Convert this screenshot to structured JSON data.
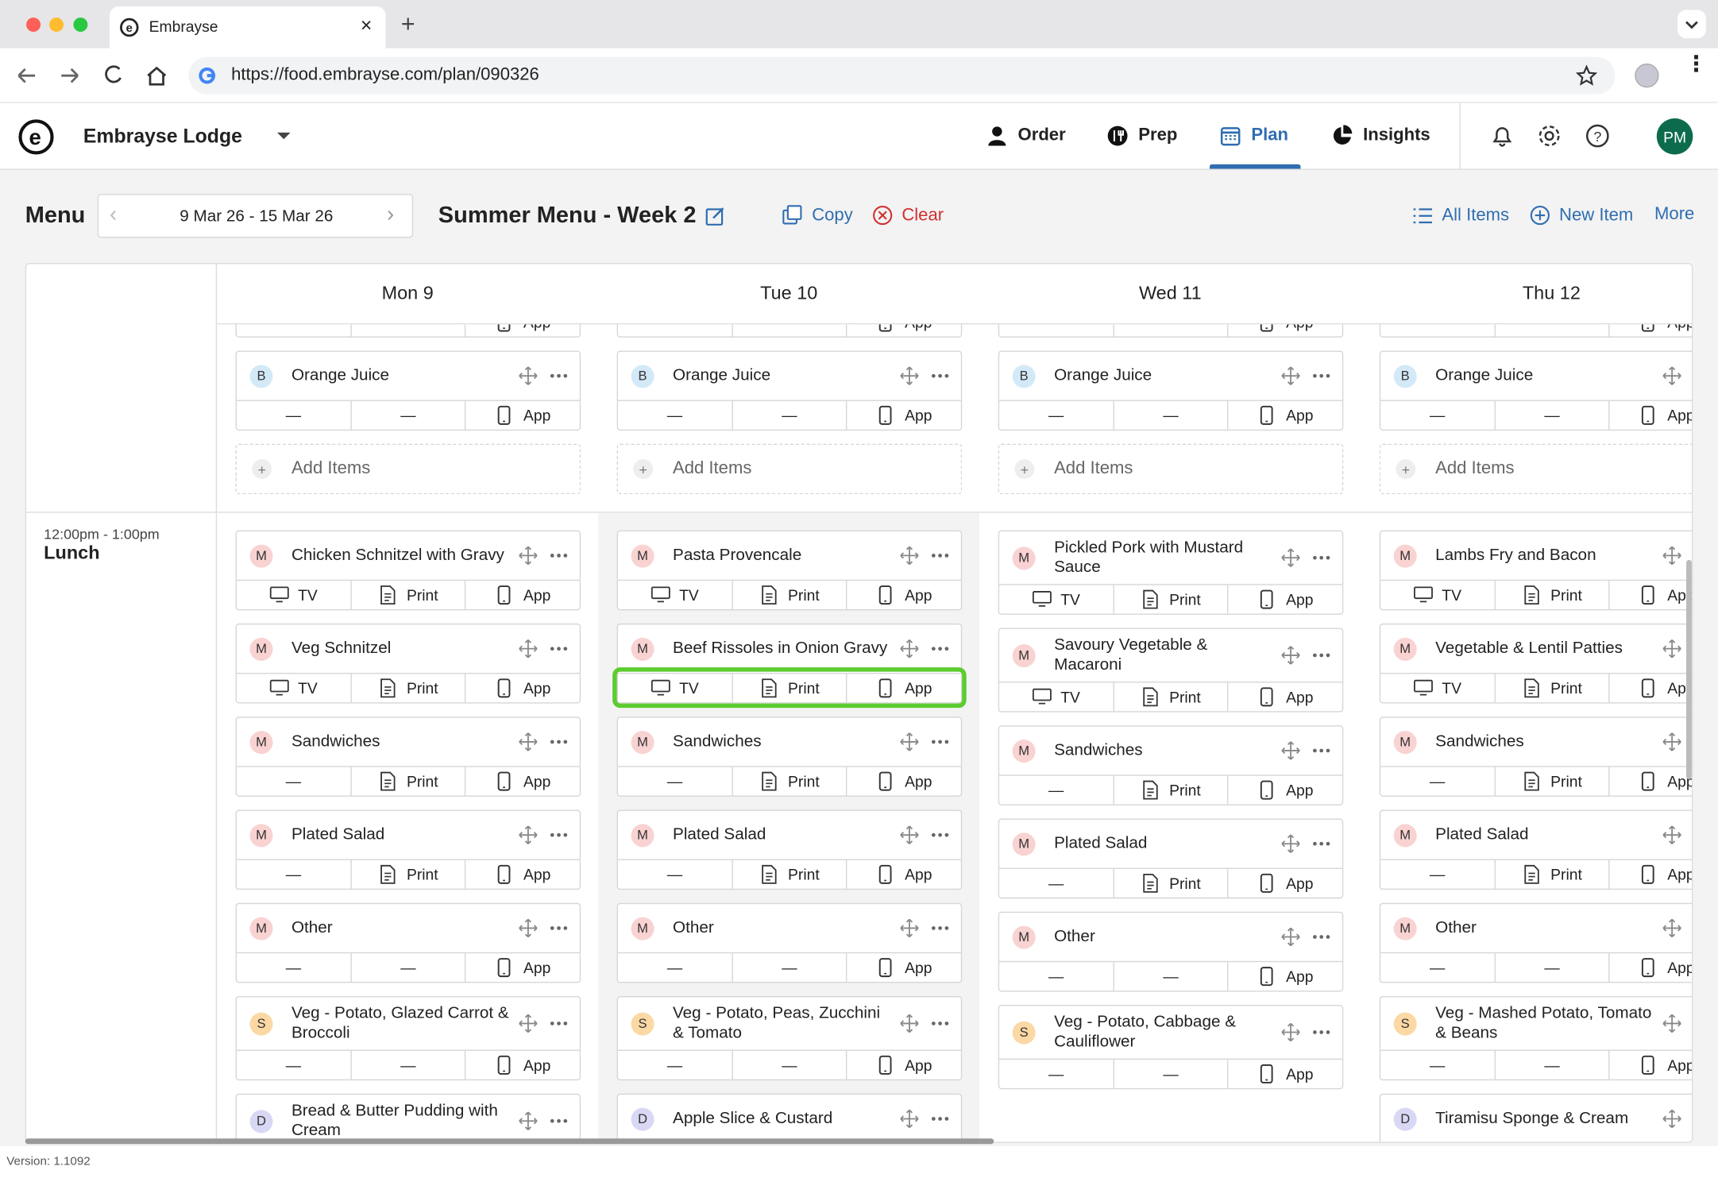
{
  "browser": {
    "tab_title": "Embrayse",
    "url": "https://food.embrayse.com/plan/090326"
  },
  "app": {
    "venue": "Embrayse Lodge",
    "nav": [
      {
        "label": "Order",
        "icon": "person"
      },
      {
        "label": "Prep",
        "icon": "prep"
      },
      {
        "label": "Plan",
        "icon": "calendar",
        "active": true
      },
      {
        "label": "Insights",
        "icon": "pie"
      }
    ],
    "avatar": "PM"
  },
  "toolbar": {
    "title": "Menu",
    "date_range": "9 Mar 26 - 15 Mar 26",
    "menu_name": "Summer Menu - Week 2",
    "copy": "Copy",
    "clear": "Clear",
    "all_items": "All Items",
    "new_item": "New Item",
    "more": "More"
  },
  "badge_colors": {
    "B": "#d3e9f7",
    "M": "#f9d2d2",
    "S": "#fbd8a4",
    "D": "#d8d8f4"
  },
  "grid": {
    "lunch_time": "12:00pm - 1:00pm",
    "lunch_label": "Lunch",
    "days": [
      {
        "label": "Mon 9",
        "breakfast": {
          "top_cut": {
            "kind": "app",
            "label": "App"
          },
          "items": [
            {
              "badge": "B",
              "name": "Orange Juice",
              "cells": [
                {
                  "kind": "none",
                  "label": "—"
                },
                {
                  "kind": "none",
                  "label": "—"
                },
                {
                  "kind": "app",
                  "label": "App"
                }
              ]
            }
          ],
          "add": "Add Items"
        },
        "lunch": {
          "items": [
            {
              "badge": "M",
              "name": "Chicken Schnitzel with Gravy",
              "cells": [
                {
                  "kind": "tv",
                  "label": "TV"
                },
                {
                  "kind": "print",
                  "label": "Print"
                },
                {
                  "kind": "app",
                  "label": "App"
                }
              ]
            },
            {
              "badge": "M",
              "name": "Veg Schnitzel",
              "cells": [
                {
                  "kind": "tv",
                  "label": "TV"
                },
                {
                  "kind": "print",
                  "label": "Print"
                },
                {
                  "kind": "app",
                  "label": "App"
                }
              ]
            },
            {
              "badge": "M",
              "name": "Sandwiches",
              "cells": [
                {
                  "kind": "none",
                  "label": "—"
                },
                {
                  "kind": "print",
                  "label": "Print"
                },
                {
                  "kind": "app",
                  "label": "App"
                }
              ]
            },
            {
              "badge": "M",
              "name": "Plated Salad",
              "cells": [
                {
                  "kind": "none",
                  "label": "—"
                },
                {
                  "kind": "print",
                  "label": "Print"
                },
                {
                  "kind": "app",
                  "label": "App"
                }
              ]
            },
            {
              "badge": "M",
              "name": "Other",
              "cells": [
                {
                  "kind": "none",
                  "label": "—"
                },
                {
                  "kind": "none",
                  "label": "—"
                },
                {
                  "kind": "app",
                  "label": "App"
                }
              ]
            },
            {
              "badge": "S",
              "name": "Veg - Potato, Glazed Carrot & Broccoli",
              "cells": [
                {
                  "kind": "none",
                  "label": "—"
                },
                {
                  "kind": "none",
                  "label": "—"
                },
                {
                  "kind": "app",
                  "label": "App"
                }
              ]
            },
            {
              "badge": "D",
              "name": "Bread & Butter Pudding with Cream"
            }
          ]
        }
      },
      {
        "label": "Tue 10",
        "shaded": true,
        "breakfast": {
          "top_cut": {
            "kind": "app",
            "label": "App"
          },
          "items": [
            {
              "badge": "B",
              "name": "Orange Juice",
              "cells": [
                {
                  "kind": "none",
                  "label": "—"
                },
                {
                  "kind": "none",
                  "label": "—"
                },
                {
                  "kind": "app",
                  "label": "App"
                }
              ]
            }
          ],
          "add": "Add Items"
        },
        "lunch": {
          "items": [
            {
              "badge": "M",
              "name": "Pasta Provencale",
              "cells": [
                {
                  "kind": "tv",
                  "label": "TV"
                },
                {
                  "kind": "print",
                  "label": "Print"
                },
                {
                  "kind": "app",
                  "label": "App"
                }
              ]
            },
            {
              "badge": "M",
              "name": "Beef Rissoles in Onion Gravy",
              "highlight": true,
              "cells": [
                {
                  "kind": "tv",
                  "label": "TV"
                },
                {
                  "kind": "print",
                  "label": "Print"
                },
                {
                  "kind": "app",
                  "label": "App"
                }
              ]
            },
            {
              "badge": "M",
              "name": "Sandwiches",
              "cells": [
                {
                  "kind": "none",
                  "label": "—"
                },
                {
                  "kind": "print",
                  "label": "Print"
                },
                {
                  "kind": "app",
                  "label": "App"
                }
              ]
            },
            {
              "badge": "M",
              "name": "Plated Salad",
              "cells": [
                {
                  "kind": "none",
                  "label": "—"
                },
                {
                  "kind": "print",
                  "label": "Print"
                },
                {
                  "kind": "app",
                  "label": "App"
                }
              ]
            },
            {
              "badge": "M",
              "name": "Other",
              "cells": [
                {
                  "kind": "none",
                  "label": "—"
                },
                {
                  "kind": "none",
                  "label": "—"
                },
                {
                  "kind": "app",
                  "label": "App"
                }
              ]
            },
            {
              "badge": "S",
              "name": "Veg - Potato, Peas, Zucchini & Tomato",
              "cells": [
                {
                  "kind": "none",
                  "label": "—"
                },
                {
                  "kind": "none",
                  "label": "—"
                },
                {
                  "kind": "app",
                  "label": "App"
                }
              ]
            },
            {
              "badge": "D",
              "name": "Apple Slice & Custard"
            }
          ]
        }
      },
      {
        "label": "Wed 11",
        "breakfast": {
          "top_cut": {
            "kind": "app",
            "label": "App"
          },
          "items": [
            {
              "badge": "B",
              "name": "Orange Juice",
              "cells": [
                {
                  "kind": "none",
                  "label": "—"
                },
                {
                  "kind": "none",
                  "label": "—"
                },
                {
                  "kind": "app",
                  "label": "App"
                }
              ]
            }
          ],
          "add": "Add Items"
        },
        "lunch": {
          "items": [
            {
              "badge": "M",
              "name": "Pickled Pork with Mustard Sauce",
              "cells": [
                {
                  "kind": "tv",
                  "label": "TV"
                },
                {
                  "kind": "print",
                  "label": "Print"
                },
                {
                  "kind": "app",
                  "label": "App"
                }
              ]
            },
            {
              "badge": "M",
              "name": "Savoury Vegetable & Macaroni",
              "cells": [
                {
                  "kind": "tv",
                  "label": "TV"
                },
                {
                  "kind": "print",
                  "label": "Print"
                },
                {
                  "kind": "app",
                  "label": "App"
                }
              ]
            },
            {
              "badge": "M",
              "name": "Sandwiches",
              "cells": [
                {
                  "kind": "none",
                  "label": "—"
                },
                {
                  "kind": "print",
                  "label": "Print"
                },
                {
                  "kind": "app",
                  "label": "App"
                }
              ]
            },
            {
              "badge": "M",
              "name": "Plated Salad",
              "cells": [
                {
                  "kind": "none",
                  "label": "—"
                },
                {
                  "kind": "print",
                  "label": "Print"
                },
                {
                  "kind": "app",
                  "label": "App"
                }
              ]
            },
            {
              "badge": "M",
              "name": "Other",
              "cells": [
                {
                  "kind": "none",
                  "label": "—"
                },
                {
                  "kind": "none",
                  "label": "—"
                },
                {
                  "kind": "app",
                  "label": "App"
                }
              ]
            },
            {
              "badge": "S",
              "name": "Veg - Potato, Cabbage & Cauliflower",
              "cells": [
                {
                  "kind": "none",
                  "label": "—"
                },
                {
                  "kind": "none",
                  "label": "—"
                },
                {
                  "kind": "app",
                  "label": "App"
                }
              ]
            }
          ]
        }
      },
      {
        "label": "Thu 12",
        "breakfast": {
          "top_cut": {
            "kind": "app",
            "label": "App"
          },
          "items": [
            {
              "badge": "B",
              "name": "Orange Juice",
              "cells": [
                {
                  "kind": "none",
                  "label": "—"
                },
                {
                  "kind": "none",
                  "label": "—"
                },
                {
                  "kind": "app",
                  "label": "App"
                }
              ]
            }
          ],
          "add": "Add Items"
        },
        "lunch": {
          "items": [
            {
              "badge": "M",
              "name": "Lambs Fry and Bacon",
              "cells": [
                {
                  "kind": "tv",
                  "label": "TV"
                },
                {
                  "kind": "print",
                  "label": "Print"
                },
                {
                  "kind": "app",
                  "label": "App"
                }
              ]
            },
            {
              "badge": "M",
              "name": "Vegetable & Lentil Patties",
              "cells": [
                {
                  "kind": "tv",
                  "label": "TV"
                },
                {
                  "kind": "print",
                  "label": "Print"
                },
                {
                  "kind": "app",
                  "label": "App"
                }
              ]
            },
            {
              "badge": "M",
              "name": "Sandwiches",
              "cells": [
                {
                  "kind": "none",
                  "label": "—"
                },
                {
                  "kind": "print",
                  "label": "Print"
                },
                {
                  "kind": "app",
                  "label": "App"
                }
              ]
            },
            {
              "badge": "M",
              "name": "Plated Salad",
              "cells": [
                {
                  "kind": "none",
                  "label": "—"
                },
                {
                  "kind": "print",
                  "label": "Print"
                },
                {
                  "kind": "app",
                  "label": "App"
                }
              ]
            },
            {
              "badge": "M",
              "name": "Other",
              "cells": [
                {
                  "kind": "none",
                  "label": "—"
                },
                {
                  "kind": "none",
                  "label": "—"
                },
                {
                  "kind": "app",
                  "label": "App"
                }
              ]
            },
            {
              "badge": "S",
              "name": "Veg - Mashed Potato, Tomato & Beans",
              "cells": [
                {
                  "kind": "none",
                  "label": "—"
                },
                {
                  "kind": "none",
                  "label": "—"
                },
                {
                  "kind": "app",
                  "label": "App"
                }
              ]
            },
            {
              "badge": "D",
              "name": "Tiramisu Sponge & Cream"
            }
          ]
        }
      }
    ]
  },
  "footer": {
    "version": "Version: 1.1092"
  }
}
